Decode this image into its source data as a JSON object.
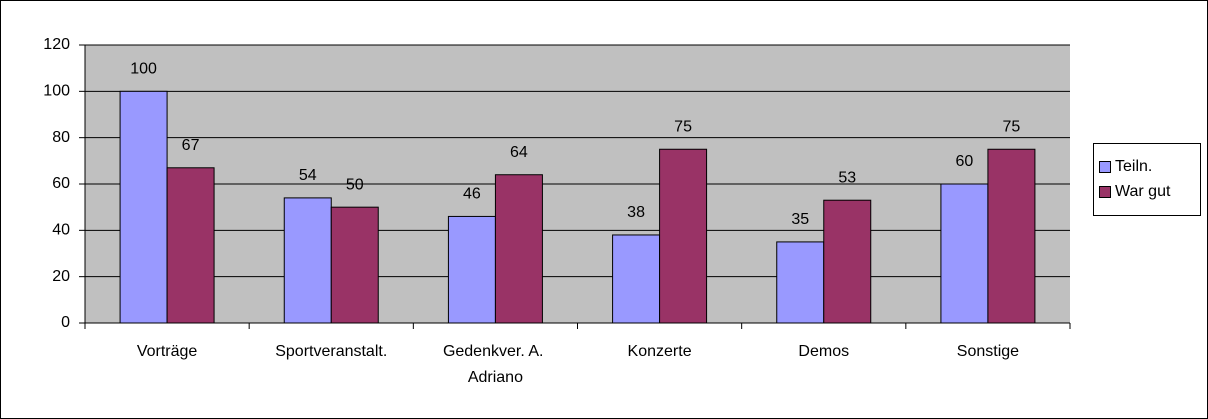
{
  "chart_data": {
    "type": "bar",
    "categories": [
      "Vorträge",
      "Sportveranstalt.",
      "Gedenkver. A. Adriano",
      "Konzerte",
      "Demos",
      "Sonstige"
    ],
    "series": [
      {
        "name": "Teiln.",
        "color": "#9999ff",
        "values": [
          100,
          54,
          46,
          38,
          35,
          60
        ]
      },
      {
        "name": "War gut",
        "color": "#993366",
        "values": [
          67,
          50,
          64,
          75,
          53,
          75
        ]
      }
    ],
    "ylim": [
      0,
      120
    ],
    "yticks": [
      0,
      20,
      40,
      60,
      80,
      100,
      120
    ],
    "grid": true,
    "legend": "right"
  }
}
